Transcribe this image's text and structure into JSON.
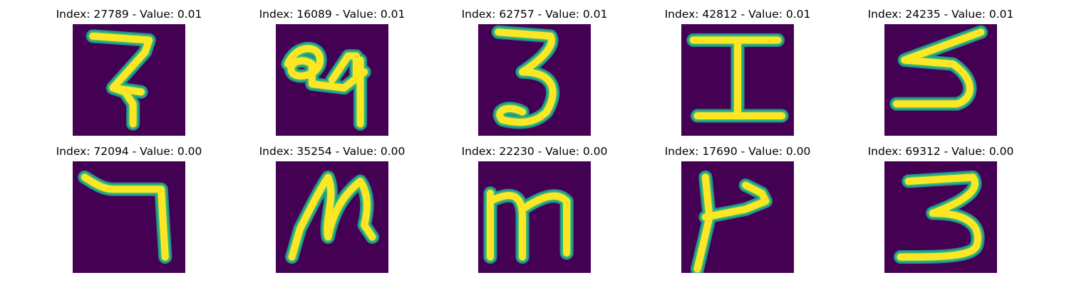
{
  "colors": {
    "background": "#440154",
    "stroke_core": "#fde725",
    "stroke_edge": "#35b779",
    "stroke_outer": "#21918c"
  },
  "samples": [
    {
      "index": "27789",
      "value": "0.01",
      "title": "Index: 27789 - Value: 0.01",
      "glyph": "glyph-a"
    },
    {
      "index": "16089",
      "value": "0.01",
      "title": "Index: 16089 - Value: 0.01",
      "glyph": "glyph-b"
    },
    {
      "index": "62757",
      "value": "0.01",
      "title": "Index: 62757 - Value: 0.01",
      "glyph": "glyph-c"
    },
    {
      "index": "42812",
      "value": "0.01",
      "title": "Index: 42812 - Value: 0.01",
      "glyph": "glyph-d"
    },
    {
      "index": "24235",
      "value": "0.01",
      "title": "Index: 24235 - Value: 0.01",
      "glyph": "glyph-e"
    },
    {
      "index": "72094",
      "value": "0.00",
      "title": "Index: 72094 - Value: 0.00",
      "glyph": "glyph-f"
    },
    {
      "index": "35254",
      "value": "0.00",
      "title": "Index: 35254 - Value: 0.00",
      "glyph": "glyph-g"
    },
    {
      "index": "22230",
      "value": "0.00",
      "title": "Index: 22230 - Value: 0.00",
      "glyph": "glyph-h"
    },
    {
      "index": "17690",
      "value": "0.00",
      "title": "Index: 17690 - Value: 0.00",
      "glyph": "glyph-i"
    },
    {
      "index": "69312",
      "value": "0.00",
      "title": "Index: 69312 - Value: 0.00",
      "glyph": "glyph-j"
    }
  ]
}
